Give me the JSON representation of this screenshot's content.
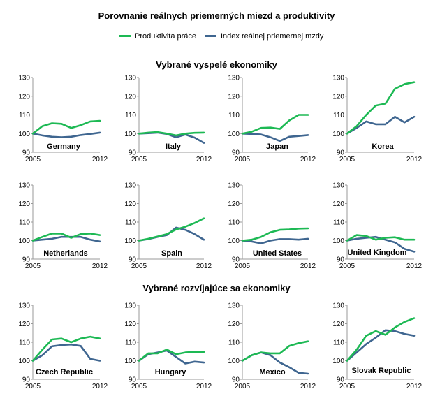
{
  "title": "Porovnanie reálnych priemerných miezd a produktivity",
  "colors": {
    "productivity": "#1db954",
    "wage": "#3f6690",
    "axis": "#9a9a9a",
    "grid": "#d9d9d9"
  },
  "legend": [
    {
      "label": "Produktivita práce",
      "color": "#1db954"
    },
    {
      "label": "Index reálnej priemernej mzdy",
      "color": "#3f6690"
    }
  ],
  "sections": [
    {
      "title": "Vybrané vyspelé ekonomiky"
    },
    {
      "title": "Vybrané rozvíjajúce sa ekonomiky"
    }
  ],
  "chart_data": [
    {
      "type": "line",
      "title": "Germany",
      "x": [
        2005,
        2006,
        2007,
        2008,
        2009,
        2010,
        2011,
        2012
      ],
      "ylim": [
        90,
        130
      ],
      "yticks": [
        90,
        100,
        110,
        120,
        130
      ],
      "xticks": [
        "2005",
        "2012"
      ],
      "series": [
        {
          "name": "Produktivita práce",
          "values": [
            100,
            104,
            105.5,
            105.2,
            103,
            104.5,
            106.5,
            106.8
          ]
        },
        {
          "name": "Index reálnej priemernej mzdy",
          "values": [
            100,
            99,
            98.3,
            98,
            98.3,
            99.2,
            99.8,
            100.5
          ]
        }
      ]
    },
    {
      "type": "line",
      "title": "Italy",
      "x": [
        2005,
        2006,
        2007,
        2008,
        2009,
        2010,
        2011,
        2012
      ],
      "ylim": [
        90,
        130
      ],
      "yticks": [
        90,
        100,
        110,
        120,
        130
      ],
      "xticks": [
        "2005",
        "2012"
      ],
      "series": [
        {
          "name": "Produktivita práce",
          "values": [
            100,
            100.5,
            100.8,
            100,
            99,
            100,
            100.4,
            100.5
          ]
        },
        {
          "name": "Index reálnej priemernej mzdy",
          "values": [
            100,
            100.2,
            100.5,
            99.8,
            98,
            99.5,
            97.8,
            95
          ]
        }
      ]
    },
    {
      "type": "line",
      "title": "Japan",
      "x": [
        2005,
        2006,
        2007,
        2008,
        2009,
        2010,
        2011,
        2012
      ],
      "ylim": [
        90,
        130
      ],
      "yticks": [
        90,
        100,
        110,
        120,
        130
      ],
      "xticks": [
        "2005",
        "2012"
      ],
      "series": [
        {
          "name": "Produktivita práce",
          "values": [
            100,
            101,
            103,
            103.2,
            102.5,
            107,
            110,
            110
          ]
        },
        {
          "name": "Index reálnej priemernej mzdy",
          "values": [
            100,
            99.8,
            99.5,
            98,
            96,
            98.3,
            98.7,
            99.2
          ]
        }
      ]
    },
    {
      "type": "line",
      "title": "Korea",
      "x": [
        2005,
        2006,
        2007,
        2008,
        2009,
        2010,
        2011,
        2012
      ],
      "ylim": [
        90,
        130
      ],
      "yticks": [
        90,
        100,
        110,
        120,
        130
      ],
      "xticks": [
        "2005",
        "2012"
      ],
      "series": [
        {
          "name": "Produktivita práce",
          "values": [
            100,
            104,
            110,
            115,
            116,
            124,
            126.5,
            127.5
          ]
        },
        {
          "name": "Index reálnej priemernej mzdy",
          "values": [
            100,
            103,
            106.5,
            105,
            105,
            109,
            106,
            109
          ]
        }
      ]
    },
    {
      "type": "line",
      "title": "Netherlands",
      "x": [
        2005,
        2006,
        2007,
        2008,
        2009,
        2010,
        2011,
        2012
      ],
      "ylim": [
        90,
        130
      ],
      "yticks": [
        90,
        100,
        110,
        120,
        130
      ],
      "xticks": [
        "2005",
        "2012"
      ],
      "series": [
        {
          "name": "Produktivita práce",
          "values": [
            100,
            102,
            103.8,
            103.8,
            101.5,
            103.5,
            103.8,
            103
          ]
        },
        {
          "name": "Index reálnej priemernej mzdy",
          "values": [
            100,
            100.5,
            101,
            102,
            102,
            102,
            100.5,
            99.5
          ]
        }
      ]
    },
    {
      "type": "line",
      "title": "Spain",
      "x": [
        2005,
        2006,
        2007,
        2008,
        2009,
        2010,
        2011,
        2012
      ],
      "ylim": [
        90,
        130
      ],
      "yticks": [
        90,
        100,
        110,
        120,
        130
      ],
      "xticks": [
        "2005",
        "2012"
      ],
      "series": [
        {
          "name": "Produktivita práce",
          "values": [
            100,
            101,
            102.2,
            103.5,
            106,
            107.5,
            109.5,
            112
          ]
        },
        {
          "name": "Index reálnej priemernej mzdy",
          "values": [
            100,
            100.8,
            102,
            103,
            107,
            105.8,
            103.5,
            100.5
          ]
        }
      ]
    },
    {
      "type": "line",
      "title": "United States",
      "x": [
        2005,
        2006,
        2007,
        2008,
        2009,
        2010,
        2011,
        2012
      ],
      "ylim": [
        90,
        130
      ],
      "yticks": [
        90,
        100,
        110,
        120,
        130
      ],
      "xticks": [
        "2005",
        "2012"
      ],
      "series": [
        {
          "name": "Produktivita práce",
          "values": [
            100,
            100.5,
            102,
            104.5,
            105.8,
            106,
            106.5,
            106.6
          ]
        },
        {
          "name": "Index reálnej priemernej mzdy",
          "values": [
            100,
            99.5,
            98.5,
            100,
            100.8,
            100.8,
            100.5,
            101
          ]
        }
      ]
    },
    {
      "type": "line",
      "title": "United Kingdom",
      "x": [
        2005,
        2006,
        2007,
        2008,
        2009,
        2010,
        2011,
        2012
      ],
      "ylim": [
        90,
        130
      ],
      "yticks": [
        90,
        100,
        110,
        120,
        130
      ],
      "xticks": [
        "2005",
        "2012"
      ],
      "series": [
        {
          "name": "Produktivita práce",
          "values": [
            100,
            103,
            102.5,
            100.5,
            101.5,
            101.8,
            100.5,
            100.5
          ]
        },
        {
          "name": "Index reálnej priemernej mzdy",
          "values": [
            100,
            101,
            101.5,
            102,
            100.5,
            99,
            95.5,
            94
          ]
        }
      ]
    },
    {
      "type": "line",
      "title": "Czech Republic",
      "x": [
        2005,
        2006,
        2007,
        2008,
        2009,
        2010,
        2011,
        2012
      ],
      "ylim": [
        90,
        130
      ],
      "yticks": [
        90,
        100,
        110,
        120,
        130
      ],
      "xticks": [
        "2005",
        "2012"
      ],
      "series": [
        {
          "name": "Produktivita práce",
          "values": [
            100,
            106,
            111.5,
            112,
            110,
            112,
            113,
            112
          ]
        },
        {
          "name": "Index reálnej priemernej mzdy",
          "values": [
            100,
            103,
            107.8,
            108.5,
            108.8,
            108,
            101,
            100
          ]
        }
      ]
    },
    {
      "type": "line",
      "title": "Hungary",
      "x": [
        2005,
        2006,
        2007,
        2008,
        2009,
        2010,
        2011,
        2012
      ],
      "ylim": [
        90,
        130
      ],
      "yticks": [
        90,
        100,
        110,
        120,
        130
      ],
      "xticks": [
        "2005",
        "2012"
      ],
      "series": [
        {
          "name": "Produktivita práce",
          "values": [
            100,
            104,
            104,
            106,
            103.5,
            104.5,
            104.8,
            104.8
          ]
        },
        {
          "name": "Index reálnej priemernej mzdy",
          "values": [
            100,
            103.5,
            104.5,
            105.5,
            102,
            98.5,
            99.5,
            99
          ]
        }
      ]
    },
    {
      "type": "line",
      "title": "Mexico",
      "x": [
        2005,
        2006,
        2007,
        2008,
        2009,
        2010,
        2011,
        2012
      ],
      "ylim": [
        90,
        130
      ],
      "yticks": [
        90,
        100,
        110,
        120,
        130
      ],
      "xticks": [
        "2005",
        "2012"
      ],
      "series": [
        {
          "name": "Produktivita práce",
          "values": [
            100,
            103,
            104.5,
            104,
            104,
            108,
            109.5,
            110.5
          ]
        },
        {
          "name": "Index reálnej priemernej mzdy",
          "values": [
            100,
            103,
            104.5,
            103,
            99,
            96.5,
            93.5,
            93
          ]
        }
      ]
    },
    {
      "type": "line",
      "title": "Slovak Republic",
      "x": [
        2005,
        2006,
        2007,
        2008,
        2009,
        2010,
        2011,
        2012
      ],
      "ylim": [
        90,
        130
      ],
      "yticks": [
        90,
        100,
        110,
        120,
        130
      ],
      "xticks": [
        "2005",
        "2012"
      ],
      "series": [
        {
          "name": "Produktivita práce",
          "values": [
            100,
            106,
            113.5,
            116,
            114,
            118,
            121,
            123
          ]
        },
        {
          "name": "Index reálnej priemernej mzdy",
          "values": [
            100,
            104.5,
            109,
            112.5,
            116.5,
            116,
            114.5,
            113.5
          ]
        }
      ]
    }
  ]
}
